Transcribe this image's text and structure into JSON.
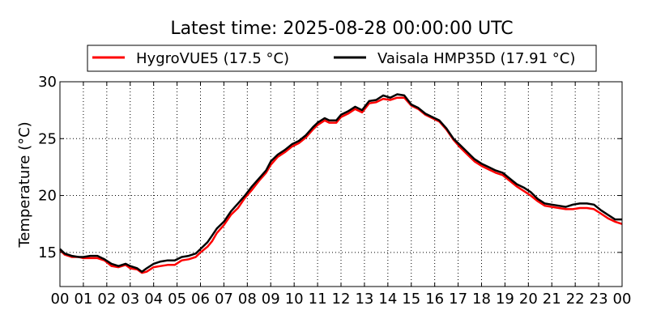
{
  "chart_data": {
    "type": "line",
    "title": "Latest time: 2025-08-28 00:00:00 UTC",
    "xlabel": "",
    "ylabel": "Temperature (°C)",
    "xlim": [
      0,
      24
    ],
    "ylim": [
      12,
      30
    ],
    "x_ticks": [
      "00",
      "01",
      "02",
      "03",
      "04",
      "05",
      "06",
      "07",
      "08",
      "09",
      "10",
      "11",
      "12",
      "13",
      "14",
      "15",
      "16",
      "17",
      "18",
      "19",
      "20",
      "21",
      "22",
      "23",
      "00"
    ],
    "y_ticks": [
      15,
      20,
      25,
      30
    ],
    "grid": true,
    "legend_position": "top",
    "series": [
      {
        "name": "HygroVUE5 (17.5 °C)",
        "color": "#ff0000",
        "points": [
          [
            0.0,
            15.2
          ],
          [
            0.2,
            14.8
          ],
          [
            0.5,
            14.6
          ],
          [
            0.8,
            14.6
          ],
          [
            1.0,
            14.5
          ],
          [
            1.3,
            14.5
          ],
          [
            1.6,
            14.5
          ],
          [
            1.9,
            14.3
          ],
          [
            2.2,
            13.8
          ],
          [
            2.5,
            13.7
          ],
          [
            2.8,
            13.9
          ],
          [
            3.0,
            13.6
          ],
          [
            3.3,
            13.5
          ],
          [
            3.5,
            13.2
          ],
          [
            3.7,
            13.3
          ],
          [
            4.0,
            13.7
          ],
          [
            4.3,
            13.8
          ],
          [
            4.6,
            13.9
          ],
          [
            4.9,
            13.9
          ],
          [
            5.2,
            14.3
          ],
          [
            5.5,
            14.4
          ],
          [
            5.8,
            14.6
          ],
          [
            6.0,
            15.0
          ],
          [
            6.3,
            15.5
          ],
          [
            6.5,
            16.0
          ],
          [
            6.7,
            16.7
          ],
          [
            7.0,
            17.4
          ],
          [
            7.3,
            18.3
          ],
          [
            7.6,
            18.9
          ],
          [
            7.9,
            19.8
          ],
          [
            8.2,
            20.5
          ],
          [
            8.5,
            21.3
          ],
          [
            8.8,
            22.0
          ],
          [
            9.0,
            22.7
          ],
          [
            9.3,
            23.4
          ],
          [
            9.6,
            23.8
          ],
          [
            9.9,
            24.3
          ],
          [
            10.2,
            24.6
          ],
          [
            10.5,
            25.1
          ],
          [
            10.8,
            25.8
          ],
          [
            11.0,
            26.2
          ],
          [
            11.3,
            26.6
          ],
          [
            11.5,
            26.4
          ],
          [
            11.8,
            26.4
          ],
          [
            12.0,
            26.9
          ],
          [
            12.3,
            27.2
          ],
          [
            12.6,
            27.6
          ],
          [
            12.9,
            27.3
          ],
          [
            13.2,
            28.1
          ],
          [
            13.5,
            28.2
          ],
          [
            13.8,
            28.5
          ],
          [
            14.1,
            28.4
          ],
          [
            14.4,
            28.6
          ],
          [
            14.7,
            28.6
          ],
          [
            15.0,
            27.9
          ],
          [
            15.3,
            27.6
          ],
          [
            15.6,
            27.1
          ],
          [
            15.9,
            26.8
          ],
          [
            16.2,
            26.5
          ],
          [
            16.5,
            25.8
          ],
          [
            16.8,
            24.9
          ],
          [
            17.1,
            24.2
          ],
          [
            17.4,
            23.6
          ],
          [
            17.7,
            23.0
          ],
          [
            18.0,
            22.6
          ],
          [
            18.3,
            22.3
          ],
          [
            18.6,
            22.0
          ],
          [
            18.9,
            21.8
          ],
          [
            19.2,
            21.3
          ],
          [
            19.5,
            20.8
          ],
          [
            19.8,
            20.4
          ],
          [
            20.1,
            20.0
          ],
          [
            20.4,
            19.5
          ],
          [
            20.7,
            19.1
          ],
          [
            21.0,
            19.0
          ],
          [
            21.3,
            18.9
          ],
          [
            21.6,
            18.8
          ],
          [
            21.9,
            18.8
          ],
          [
            22.2,
            18.9
          ],
          [
            22.5,
            18.9
          ],
          [
            22.8,
            18.8
          ],
          [
            23.1,
            18.4
          ],
          [
            23.4,
            18.0
          ],
          [
            23.7,
            17.7
          ],
          [
            24.0,
            17.5
          ]
        ]
      },
      {
        "name": "Vaisala HMP35D (17.91 °C)",
        "color": "#000000",
        "points": [
          [
            0.0,
            15.3
          ],
          [
            0.2,
            14.9
          ],
          [
            0.5,
            14.7
          ],
          [
            0.8,
            14.6
          ],
          [
            1.0,
            14.6
          ],
          [
            1.3,
            14.7
          ],
          [
            1.6,
            14.7
          ],
          [
            1.9,
            14.4
          ],
          [
            2.2,
            14.0
          ],
          [
            2.5,
            13.8
          ],
          [
            2.8,
            14.0
          ],
          [
            3.0,
            13.8
          ],
          [
            3.3,
            13.6
          ],
          [
            3.5,
            13.3
          ],
          [
            3.7,
            13.6
          ],
          [
            4.0,
            14.0
          ],
          [
            4.3,
            14.2
          ],
          [
            4.6,
            14.3
          ],
          [
            4.9,
            14.3
          ],
          [
            5.2,
            14.6
          ],
          [
            5.5,
            14.7
          ],
          [
            5.8,
            14.9
          ],
          [
            6.0,
            15.3
          ],
          [
            6.3,
            15.9
          ],
          [
            6.5,
            16.5
          ],
          [
            6.7,
            17.1
          ],
          [
            7.0,
            17.7
          ],
          [
            7.3,
            18.6
          ],
          [
            7.6,
            19.3
          ],
          [
            7.9,
            20.0
          ],
          [
            8.2,
            20.8
          ],
          [
            8.5,
            21.5
          ],
          [
            8.8,
            22.2
          ],
          [
            9.0,
            23.0
          ],
          [
            9.3,
            23.6
          ],
          [
            9.6,
            24.0
          ],
          [
            9.9,
            24.5
          ],
          [
            10.2,
            24.8
          ],
          [
            10.5,
            25.3
          ],
          [
            10.8,
            26.0
          ],
          [
            11.0,
            26.4
          ],
          [
            11.3,
            26.8
          ],
          [
            11.5,
            26.6
          ],
          [
            11.8,
            26.6
          ],
          [
            12.0,
            27.1
          ],
          [
            12.3,
            27.4
          ],
          [
            12.6,
            27.8
          ],
          [
            12.9,
            27.5
          ],
          [
            13.2,
            28.3
          ],
          [
            13.5,
            28.4
          ],
          [
            13.8,
            28.8
          ],
          [
            14.1,
            28.6
          ],
          [
            14.4,
            28.9
          ],
          [
            14.7,
            28.8
          ],
          [
            15.0,
            28.0
          ],
          [
            15.3,
            27.7
          ],
          [
            15.6,
            27.2
          ],
          [
            15.9,
            26.9
          ],
          [
            16.2,
            26.6
          ],
          [
            16.5,
            25.9
          ],
          [
            16.8,
            25.0
          ],
          [
            17.1,
            24.4
          ],
          [
            17.4,
            23.8
          ],
          [
            17.7,
            23.2
          ],
          [
            18.0,
            22.8
          ],
          [
            18.3,
            22.5
          ],
          [
            18.6,
            22.2
          ],
          [
            18.9,
            22.0
          ],
          [
            19.2,
            21.5
          ],
          [
            19.5,
            21.0
          ],
          [
            19.8,
            20.7
          ],
          [
            20.1,
            20.3
          ],
          [
            20.4,
            19.7
          ],
          [
            20.7,
            19.3
          ],
          [
            21.0,
            19.2
          ],
          [
            21.3,
            19.1
          ],
          [
            21.6,
            19.0
          ],
          [
            21.9,
            19.2
          ],
          [
            22.2,
            19.3
          ],
          [
            22.5,
            19.3
          ],
          [
            22.8,
            19.2
          ],
          [
            23.1,
            18.7
          ],
          [
            23.4,
            18.3
          ],
          [
            23.7,
            17.9
          ],
          [
            24.0,
            17.9
          ]
        ]
      }
    ]
  }
}
